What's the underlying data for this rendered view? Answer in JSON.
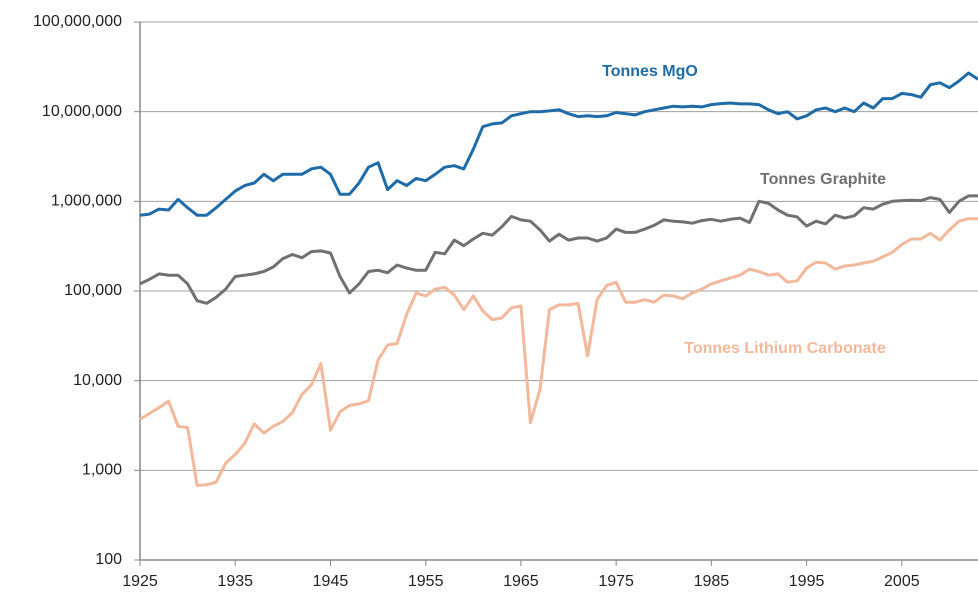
{
  "chart_data": {
    "type": "line",
    "log_y": true,
    "grid": true,
    "x": [
      1925,
      1926,
      1927,
      1928,
      1929,
      1930,
      1931,
      1932,
      1933,
      1934,
      1935,
      1936,
      1937,
      1938,
      1939,
      1940,
      1941,
      1942,
      1943,
      1944,
      1945,
      1946,
      1947,
      1948,
      1949,
      1950,
      1951,
      1952,
      1953,
      1954,
      1955,
      1956,
      1957,
      1958,
      1959,
      1960,
      1961,
      1962,
      1963,
      1964,
      1965,
      1966,
      1967,
      1968,
      1969,
      1970,
      1971,
      1972,
      1973,
      1974,
      1975,
      1976,
      1977,
      1978,
      1979,
      1980,
      1981,
      1982,
      1983,
      1984,
      1985,
      1986,
      1987,
      1988,
      1989,
      1990,
      1991,
      1992,
      1993,
      1994,
      1995,
      1996,
      1997,
      1998,
      1999,
      2000,
      2001,
      2002,
      2003,
      2004,
      2005,
      2006,
      2007,
      2008,
      2009,
      2010,
      2011,
      2012,
      2013
    ],
    "series": [
      {
        "name": "Tonnes MgO",
        "color": "#1f6ba8",
        "values": [
          700000,
          720000,
          820000,
          800000,
          1050000,
          850000,
          700000,
          700000,
          850000,
          1050000,
          1300000,
          1500000,
          1600000,
          2000000,
          1700000,
          2000000,
          2000000,
          2000000,
          2300000,
          2400000,
          2000000,
          1200000,
          1200000,
          1600000,
          2400000,
          2700000,
          1350000,
          1700000,
          1500000,
          1800000,
          1700000,
          2000000,
          2400000,
          2500000,
          2300000,
          3800000,
          6800000,
          7300000,
          7500000,
          9000000,
          9500000,
          10000000,
          10000000,
          10200000,
          10500000,
          9500000,
          8800000,
          9000000,
          8800000,
          9000000,
          9800000,
          9500000,
          9200000,
          10000000,
          10500000,
          11000000,
          11500000,
          11300000,
          11500000,
          11300000,
          12000000,
          12300000,
          12500000,
          12200000,
          12200000,
          12000000,
          10500000,
          9500000,
          10000000,
          8300000,
          9000000,
          10500000,
          11000000,
          10000000,
          11000000,
          10000000,
          12500000,
          11000000,
          14000000,
          14000000,
          16000000,
          15500000,
          14500000,
          20000000,
          21000000,
          18500000,
          22000000,
          27000000,
          23000000
        ]
      },
      {
        "name": "Tonnes Graphite",
        "color": "#707070",
        "values": [
          120000,
          135000,
          155000,
          150000,
          150000,
          120000,
          78000,
          73000,
          85000,
          105000,
          145000,
          150000,
          155000,
          165000,
          185000,
          230000,
          255000,
          235000,
          275000,
          280000,
          265000,
          145000,
          95000,
          120000,
          165000,
          170000,
          160000,
          195000,
          180000,
          170000,
          170000,
          270000,
          260000,
          370000,
          320000,
          380000,
          440000,
          420000,
          520000,
          680000,
          620000,
          600000,
          480000,
          360000,
          430000,
          370000,
          390000,
          390000,
          360000,
          390000,
          490000,
          450000,
          450000,
          490000,
          540000,
          620000,
          600000,
          590000,
          570000,
          610000,
          630000,
          600000,
          630000,
          650000,
          580000,
          1000000,
          950000,
          800000,
          700000,
          670000,
          530000,
          600000,
          560000,
          700000,
          650000,
          690000,
          850000,
          820000,
          930000,
          1000000,
          1020000,
          1030000,
          1020000,
          1100000,
          1050000,
          750000,
          1000000,
          1150000,
          1150000
        ]
      },
      {
        "name": "Tonnes Lithium Carbonate",
        "color": "#f2b89b",
        "values": [
          3700,
          4300,
          5000,
          5900,
          3100,
          3000,
          680,
          690,
          740,
          1200,
          1500,
          2000,
          3300,
          2600,
          3100,
          3500,
          4400,
          7000,
          9000,
          15500,
          2800,
          4500,
          5300,
          5500,
          6000,
          17000,
          25000,
          26000,
          55000,
          95000,
          88000,
          105000,
          110000,
          90000,
          62000,
          88000,
          60000,
          48000,
          50000,
          65000,
          68000,
          3400,
          8000,
          62000,
          70000,
          70000,
          73000,
          19000,
          80000,
          115000,
          125000,
          75000,
          75000,
          80000,
          75000,
          90000,
          88000,
          82000,
          95000,
          105000,
          120000,
          130000,
          140000,
          150000,
          175000,
          165000,
          150000,
          155000,
          125000,
          130000,
          180000,
          210000,
          205000,
          175000,
          190000,
          195000,
          205000,
          215000,
          240000,
          270000,
          330000,
          380000,
          380000,
          440000,
          370000,
          480000,
          600000,
          640000,
          640000
        ]
      }
    ],
    "xlim": [
      1925,
      2013
    ],
    "xticks": [
      1925,
      1935,
      1945,
      1955,
      1965,
      1975,
      1985,
      1995,
      2005
    ],
    "ylim": [
      100,
      100000000
    ],
    "yticks": [
      {
        "value": 100,
        "label": "100"
      },
      {
        "value": 1000,
        "label": "1,000"
      },
      {
        "value": 10000,
        "label": "10,000"
      },
      {
        "value": 100000,
        "label": "100,000"
      },
      {
        "value": 1000000,
        "label": "1,000,000"
      },
      {
        "value": 10000000,
        "label": "10,000,000"
      },
      {
        "value": 100000000,
        "label": "100,000,000"
      }
    ]
  }
}
